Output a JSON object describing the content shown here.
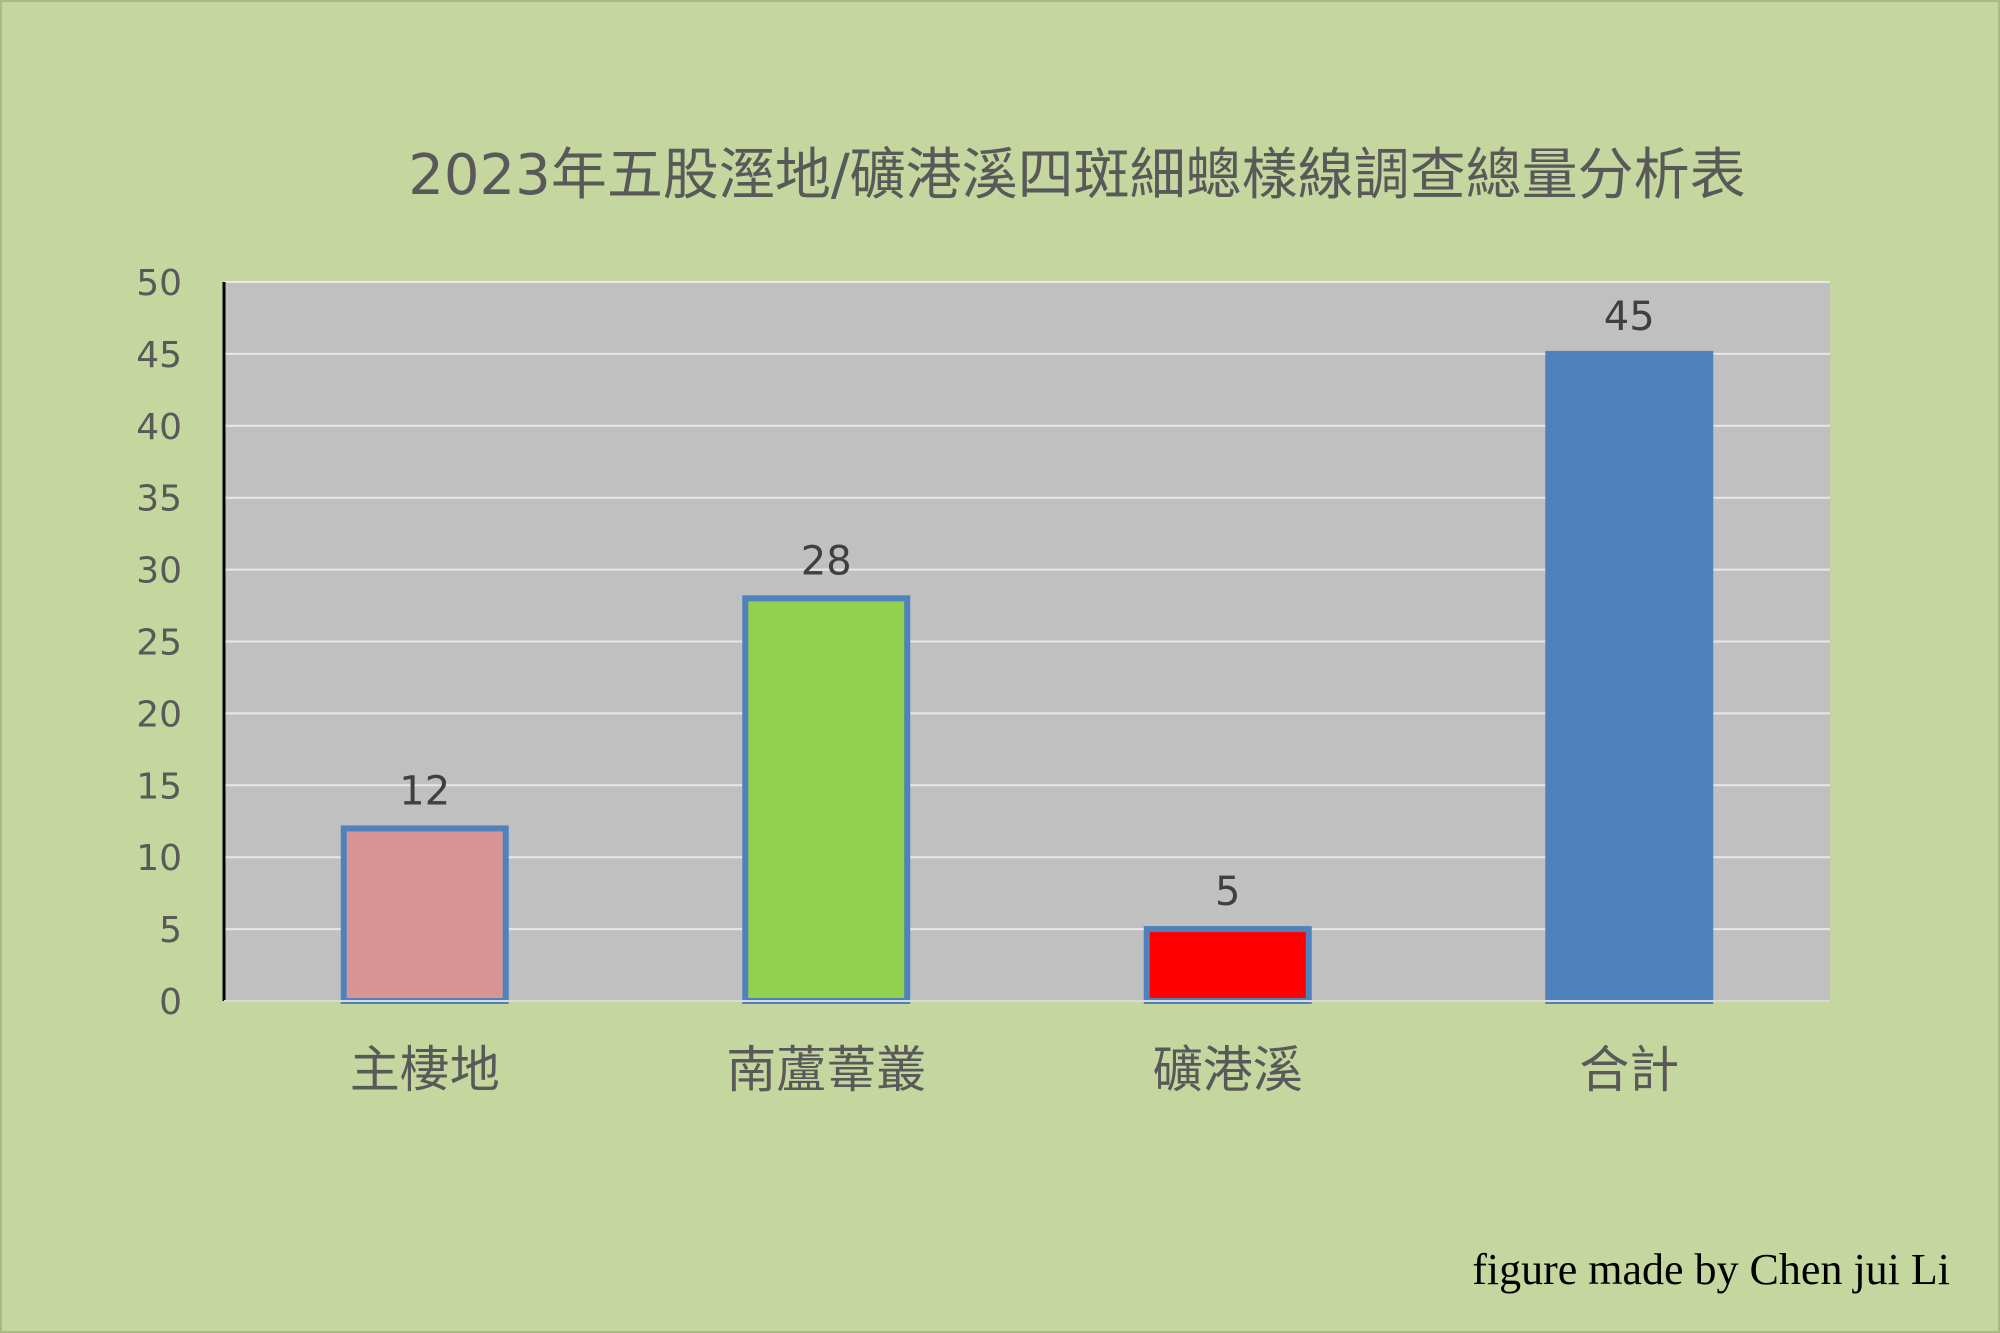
{
  "chart_data": {
    "type": "bar",
    "title": "2023年五股溼地/礦港溪四斑細蟌樣線調查總量分析表",
    "categories": [
      "主棲地",
      "南蘆葦叢",
      "礦港溪",
      "合計"
    ],
    "values": [
      12,
      28,
      5,
      45
    ],
    "bar_colors": [
      "#d99594",
      "#92d050",
      "#ff0000",
      "#4f81bd"
    ],
    "bar_border_color": "#4f81bd",
    "ylim": [
      0,
      50
    ],
    "yticks": [
      "0",
      "5",
      "10",
      "15",
      "20",
      "25",
      "30",
      "35",
      "40",
      "45",
      "50"
    ],
    "grid": true,
    "plot_background": "#c0c0c0",
    "gridline_color": "#e8e8e8"
  },
  "footer": {
    "credit": "figure made by Chen jui Li"
  }
}
